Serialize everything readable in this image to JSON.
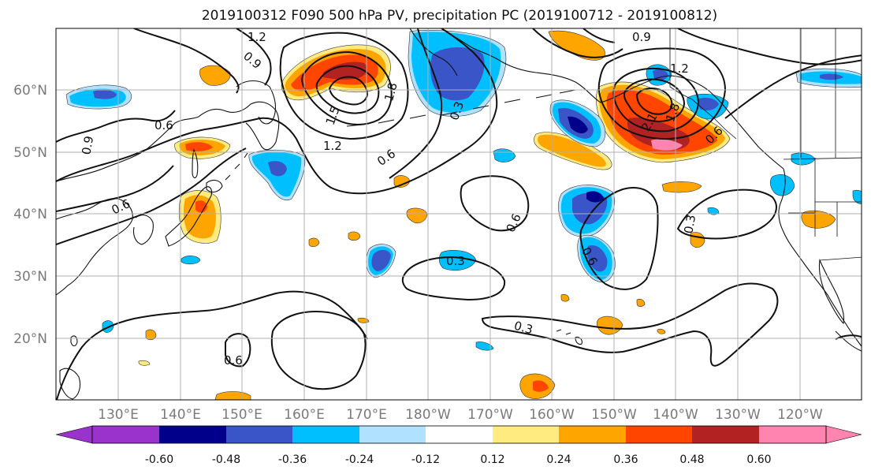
{
  "title": "2019100312 F090 500 hPa PV, precipitation PC (2019100712 - 2019100812)",
  "map": {
    "lon_ticks": [
      "130°E",
      "140°E",
      "150°E",
      "160°E",
      "170°E",
      "180°W",
      "170°W",
      "160°W",
      "150°W",
      "140°W",
      "130°W",
      "120°W"
    ],
    "lat_ticks": [
      "20°N",
      "30°N",
      "40°N",
      "50°N",
      "60°N"
    ],
    "contour_labels": [
      "1.2",
      "0.9",
      "1.5",
      "1.8",
      "1.2",
      "0.6",
      "0.6",
      "0.6",
      "0.3",
      "0.9",
      "1.2",
      "2.1",
      "1.8",
      "0.6",
      "0.3",
      "0.6",
      "0.3",
      "0.6",
      "0.3",
      "0.9",
      "0.6"
    ]
  },
  "colorbar": {
    "labels": [
      "-0.60",
      "-0.48",
      "-0.36",
      "-0.24",
      "-0.12",
      "0.12",
      "0.24",
      "0.36",
      "0.48",
      "0.60"
    ],
    "colors": {
      "under": "#9933cc",
      "b1": "#00008b",
      "b2": "#3a55c8",
      "b3": "#00bfff",
      "b4": "#b0e2ff",
      "b5": "#ffffff",
      "b6": "#ffeb80",
      "b7": "#ffa500",
      "b8": "#ff4500",
      "b9": "#b22222",
      "over": "#ff85b0"
    }
  }
}
